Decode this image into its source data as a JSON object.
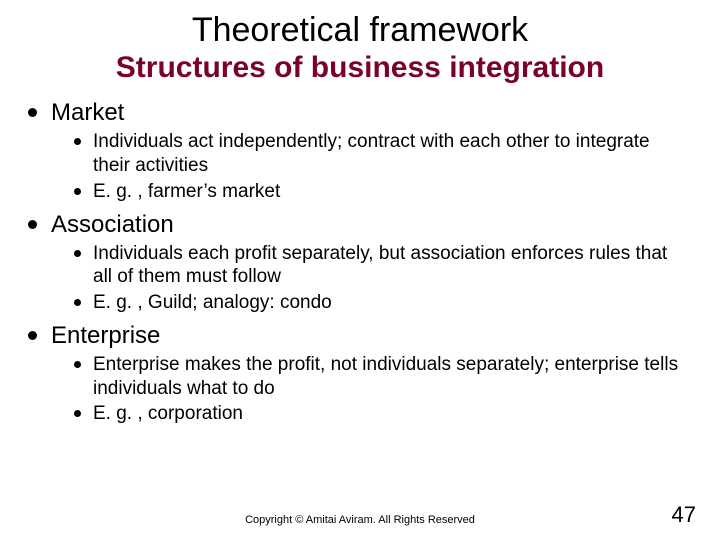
{
  "title": "Theoretical framework",
  "subtitle": "Structures of business integration",
  "title_color": "#000000",
  "subtitle_color": "#7a002d",
  "background_color": "#ffffff",
  "bullet_color": "#000000",
  "fonts": {
    "title_size_pt": 34,
    "subtitle_size_pt": 30,
    "lvl1_size_pt": 24,
    "lvl2_size_pt": 19,
    "footer_size_pt": 11,
    "pagenum_size_pt": 22
  },
  "sections": [
    {
      "heading": "Market",
      "items": [
        "Individuals act independently; contract with each other to integrate their activities",
        "E. g. , farmer’s market"
      ]
    },
    {
      "heading": "Association",
      "items": [
        "Individuals each profit separately, but association enforces rules that all of them must follow",
        "E. g. , Guild; analogy: condo"
      ]
    },
    {
      "heading": "Enterprise",
      "items": [
        "Enterprise makes the profit, not individuals separately; enterprise tells individuals what to do",
        "E. g. , corporation"
      ]
    }
  ],
  "footer": "Copyright © Amitai Aviram. All Rights Reserved",
  "page_number": "47"
}
